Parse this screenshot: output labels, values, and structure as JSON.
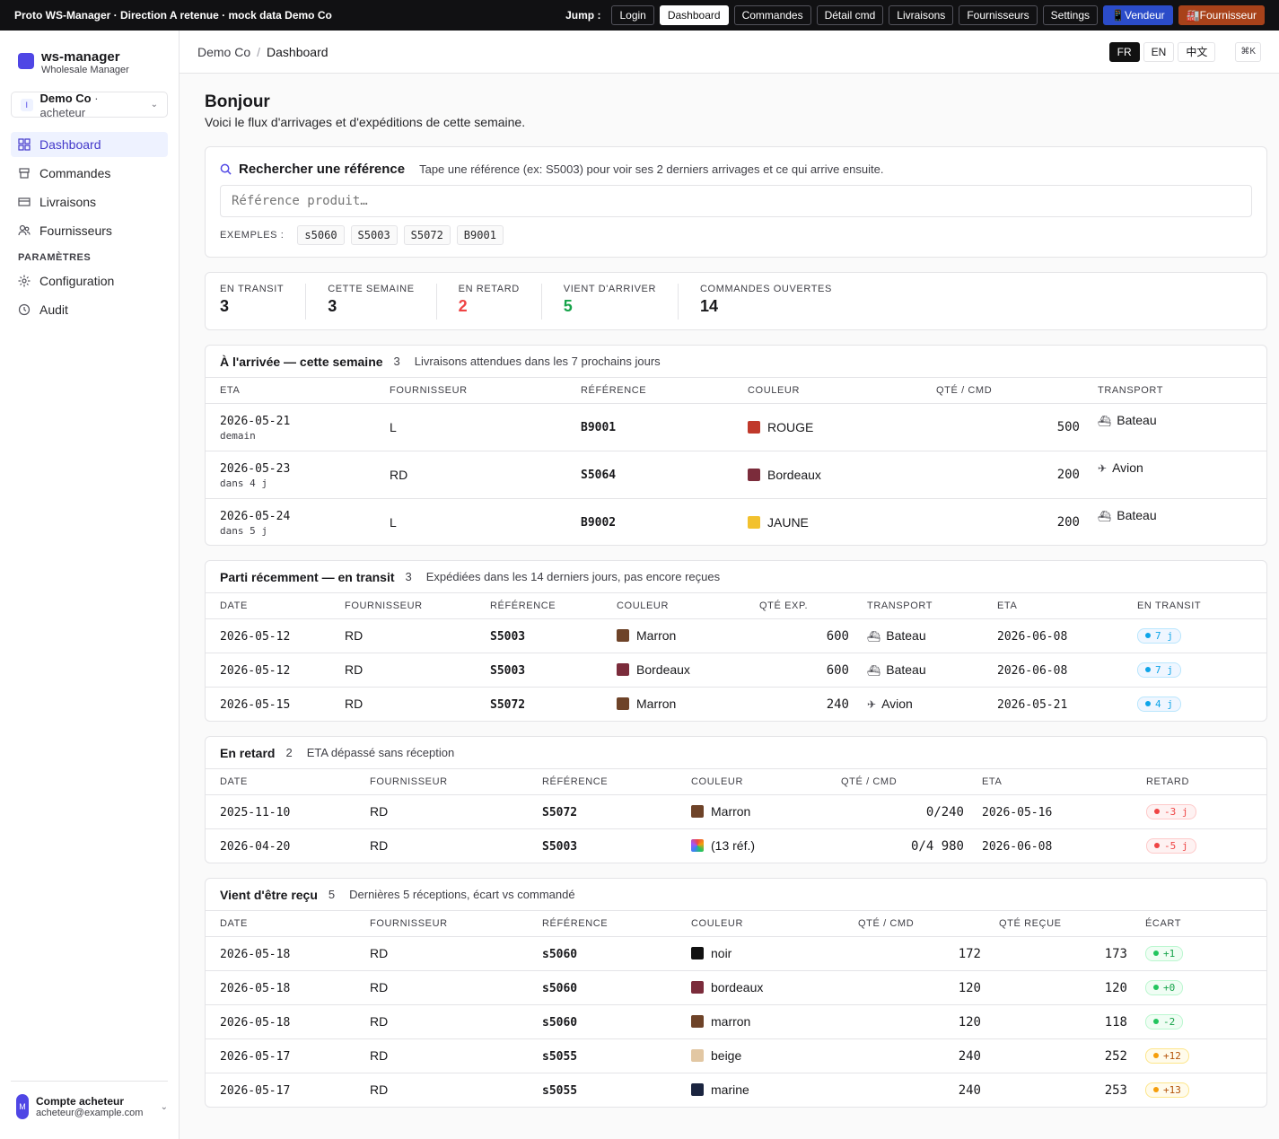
{
  "topbar": {
    "proto": "Proto WS-Manager · Direction A retenue · mock data Demo Co",
    "jump_label": "Jump :",
    "buttons": [
      "Login",
      "Dashboard",
      "Commandes",
      "Détail cmd",
      "Livraisons",
      "Fournisseurs",
      "Settings"
    ],
    "vendeur": "📱Vendeur",
    "fournisseur": "🏭Fournisseur"
  },
  "sidebar": {
    "brand": "ws-manager",
    "brand_sub": "Wholesale Manager",
    "tenant_initial": "I",
    "tenant_name": "Demo Co",
    "tenant_role": " · acheteur",
    "nav": [
      "Dashboard",
      "Commandes",
      "Livraisons",
      "Fournisseurs"
    ],
    "section": "PARAMÈTRES",
    "settings_nav": [
      "Configuration",
      "Audit"
    ],
    "account_initial": "M",
    "account_name": "Compte acheteur",
    "account_email": "acheteur@example.com"
  },
  "header": {
    "crumb_root": "Demo Co",
    "crumb_sep": "/",
    "crumb_current": "Dashboard",
    "langs": [
      "FR",
      "EN",
      "中文"
    ],
    "shortcut": "⌘K"
  },
  "greeting": {
    "title": "Bonjour",
    "subtitle": "Voici le flux d'arrivages et d'expéditions de cette semaine."
  },
  "search": {
    "title": "Rechercher une référence",
    "description": "Tape une référence (ex: S5003) pour voir ses 2 derniers arrivages et ce qui arrive ensuite.",
    "placeholder": "Référence produit…",
    "examples_label": "EXEMPLES :",
    "examples": [
      "s5060",
      "S5003",
      "S5072",
      "B9001"
    ]
  },
  "stats": [
    {
      "label": "EN TRANSIT",
      "value": "3",
      "color": "#18181b"
    },
    {
      "label": "CETTE SEMAINE",
      "value": "3",
      "color": "#18181b"
    },
    {
      "label": "EN RETARD",
      "value": "2",
      "color": "#ef4444"
    },
    {
      "label": "VIENT D'ARRIVER",
      "value": "5",
      "color": "#16a34a"
    },
    {
      "label": "COMMANDES OUVERTES",
      "value": "14",
      "color": "#18181b"
    }
  ],
  "arrivals": {
    "title": "À l'arrivée — cette semaine",
    "count": "3",
    "description": "Livraisons attendues dans les 7 prochains jours",
    "columns": [
      "ETA",
      "FOURNISSEUR",
      "RÉFÉRENCE",
      "COULEUR",
      "QTÉ / CMD",
      "TRANSPORT"
    ],
    "rows": [
      {
        "eta": "2026-05-21",
        "rel": "demain",
        "supplier": "L",
        "ref": "B9001",
        "color_name": "ROUGE",
        "swatch": "#c0392b",
        "qty": "500",
        "transport": "Bateau",
        "transport_icon": "⛴"
      },
      {
        "eta": "2026-05-23",
        "rel": "dans 4 j",
        "supplier": "RD",
        "ref": "S5064",
        "color_name": "Bordeaux",
        "swatch": "#7b2c3b",
        "qty": "200",
        "transport": "Avion",
        "transport_icon": "✈"
      },
      {
        "eta": "2026-05-24",
        "rel": "dans 5 j",
        "supplier": "L",
        "ref": "B9002",
        "color_name": "JAUNE",
        "swatch": "#f2c12e",
        "qty": "200",
        "transport": "Bateau",
        "transport_icon": "⛴"
      }
    ]
  },
  "transit": {
    "title": "Parti récemment — en transit",
    "count": "3",
    "description": "Expédiées dans les 14 derniers jours, pas encore reçues",
    "columns": [
      "DATE",
      "FOURNISSEUR",
      "RÉFÉRENCE",
      "COULEUR",
      "QTÉ EXP.",
      "TRANSPORT",
      "ETA",
      "EN TRANSIT"
    ],
    "rows": [
      {
        "date": "2026-05-12",
        "supplier": "RD",
        "ref": "S5003",
        "color_name": "Marron",
        "swatch": "#6e4328",
        "qty": "600",
        "transport": "Bateau",
        "transport_icon": "⛴",
        "eta": "2026-06-08",
        "days": "7 j"
      },
      {
        "date": "2026-05-12",
        "supplier": "RD",
        "ref": "S5003",
        "color_name": "Bordeaux",
        "swatch": "#7b2c3b",
        "qty": "600",
        "transport": "Bateau",
        "transport_icon": "⛴",
        "eta": "2026-06-08",
        "days": "7 j"
      },
      {
        "date": "2026-05-15",
        "supplier": "RD",
        "ref": "S5072",
        "color_name": "Marron",
        "swatch": "#6e4328",
        "qty": "240",
        "transport": "Avion",
        "transport_icon": "✈",
        "eta": "2026-05-21",
        "days": "4 j"
      }
    ]
  },
  "late": {
    "title": "En retard",
    "count": "2",
    "description": "ETA dépassé sans réception",
    "columns": [
      "DATE",
      "FOURNISSEUR",
      "RÉFÉRENCE",
      "COULEUR",
      "QTÉ / CMD",
      "ETA",
      "RETARD"
    ],
    "rows": [
      {
        "date": "2025-11-10",
        "supplier": "RD",
        "ref": "S5072",
        "color_name": "Marron",
        "swatch": "#6e4328",
        "qty": "0/240",
        "eta": "2026-05-16",
        "delay": "-3 j"
      },
      {
        "date": "2026-04-20",
        "supplier": "RD",
        "ref": "S5003",
        "color_name": "(13 réf.)",
        "swatch": "multi",
        "qty": "0/4 980",
        "eta": "2026-06-08",
        "delay": "-5 j"
      }
    ]
  },
  "received": {
    "title": "Vient d'être reçu",
    "count": "5",
    "description": "Dernières 5 réceptions, écart vs commandé",
    "columns": [
      "DATE",
      "FOURNISSEUR",
      "RÉFÉRENCE",
      "COULEUR",
      "QTÉ / CMD",
      "QTÉ REÇUE",
      "ÉCART"
    ],
    "rows": [
      {
        "date": "2026-05-18",
        "supplier": "RD",
        "ref": "s5060",
        "color_name": "noir",
        "swatch": "#111111",
        "qty": "172",
        "received": "173",
        "diff": "+1",
        "tone": "green"
      },
      {
        "date": "2026-05-18",
        "supplier": "RD",
        "ref": "s5060",
        "color_name": "bordeaux",
        "swatch": "#7b2c3b",
        "qty": "120",
        "received": "120",
        "diff": "+0",
        "tone": "green"
      },
      {
        "date": "2026-05-18",
        "supplier": "RD",
        "ref": "s5060",
        "color_name": "marron",
        "swatch": "#6e4328",
        "qty": "120",
        "received": "118",
        "diff": "-2",
        "tone": "green"
      },
      {
        "date": "2026-05-17",
        "supplier": "RD",
        "ref": "s5055",
        "color_name": "beige",
        "swatch": "#e2c7a3",
        "qty": "240",
        "received": "252",
        "diff": "+12",
        "tone": "amber"
      },
      {
        "date": "2026-05-17",
        "supplier": "RD",
        "ref": "s5055",
        "color_name": "marine",
        "swatch": "#1b2540",
        "qty": "240",
        "received": "253",
        "diff": "+13",
        "tone": "amber"
      }
    ]
  }
}
